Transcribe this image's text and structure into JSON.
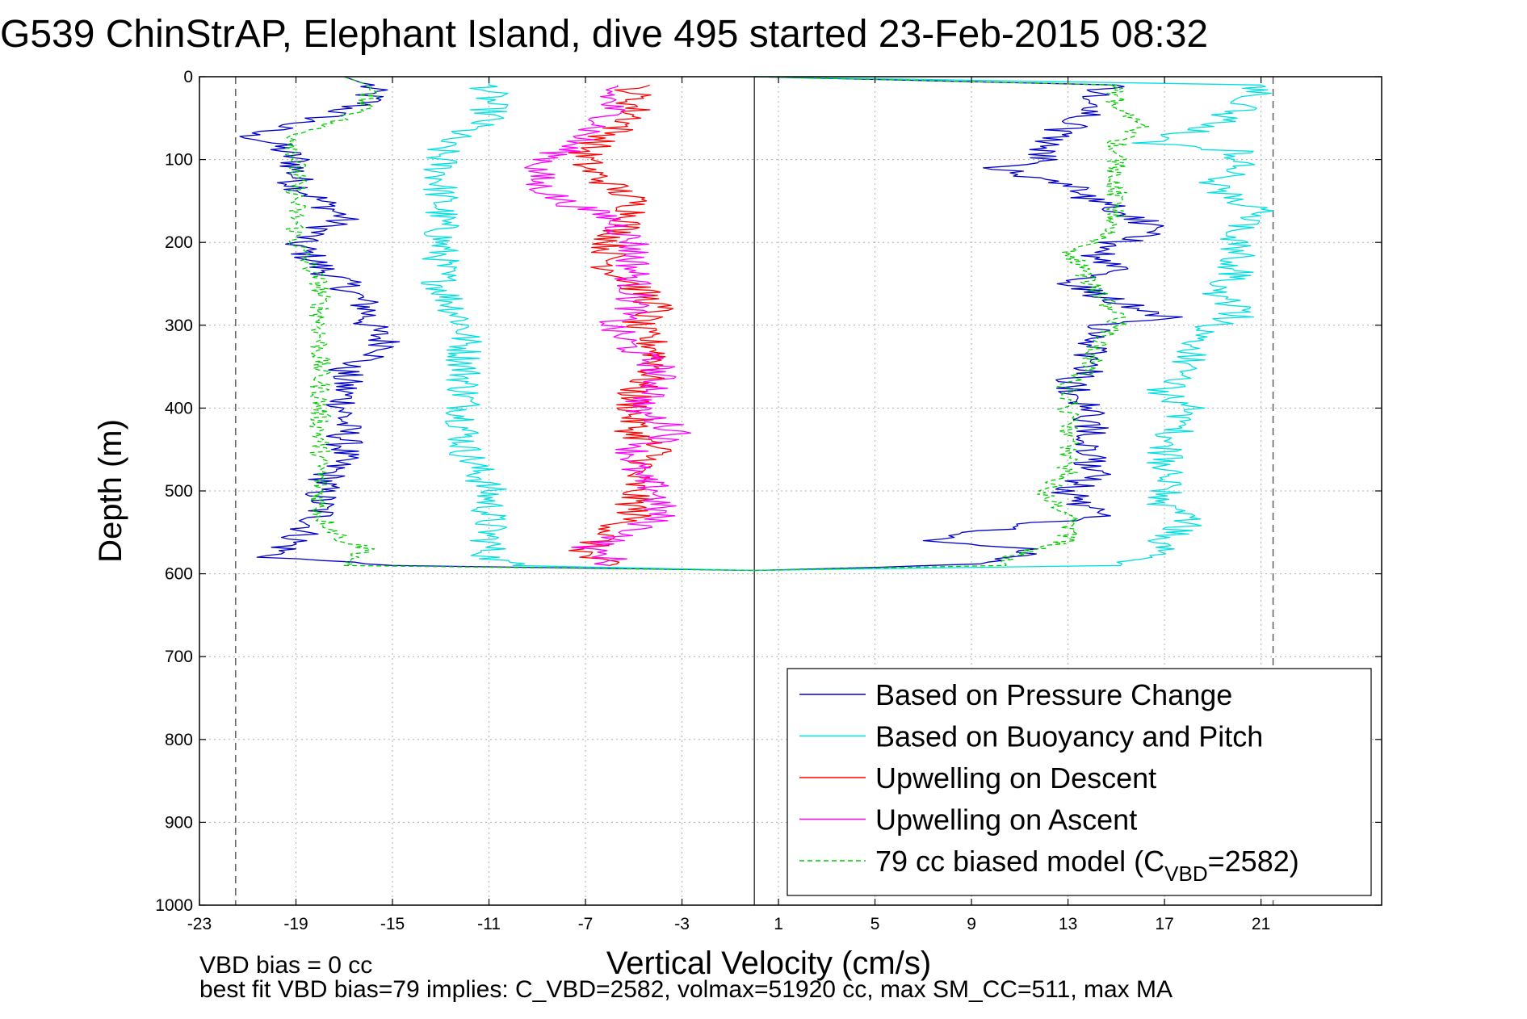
{
  "chart_data": {
    "type": "line",
    "title": "G539 ChinStrAP, Elephant Island, dive 495 started 23-Feb-2015 08:32",
    "xlabel": "Vertical Velocity (cm/s)",
    "ylabel": "Depth (m)",
    "xlim": [
      -23,
      26
    ],
    "ylim": [
      0,
      1000
    ],
    "y_reversed": true,
    "grid": true,
    "x_ticks": [
      "-23",
      "-19",
      "-15",
      "-11",
      "-7",
      "-3",
      "1",
      "5",
      "9",
      "13",
      "17",
      "21"
    ],
    "y_ticks": [
      "0",
      "100",
      "200",
      "300",
      "400",
      "500",
      "600",
      "700",
      "800",
      "900",
      "1000"
    ],
    "vertical_lines": [
      {
        "x": -21.5,
        "style": "dashed"
      },
      {
        "x": 0.0,
        "style": "solid"
      },
      {
        "x": 21.5,
        "style": "dashed"
      }
    ],
    "legend_position": "bottom-right",
    "series": [
      {
        "name": "Based on Pressure Change",
        "color": "#0000cc",
        "descent": {
          "depth": [
            0,
            10,
            30,
            50,
            70,
            80,
            100,
            130,
            150,
            170,
            200,
            230,
            250,
            280,
            300,
            330,
            350,
            380,
            400,
            450,
            500,
            530,
            560,
            580,
            590,
            596
          ],
          "x": [
            -17,
            -16,
            -16,
            -18,
            -21,
            -20,
            -19,
            -19,
            -18,
            -17,
            -19,
            -18,
            -17,
            -16,
            -16,
            -15,
            -17,
            -17,
            -17,
            -17,
            -18,
            -18,
            -19,
            -20,
            -15,
            0
          ]
        },
        "ascent": {
          "depth": [
            596,
            590,
            580,
            570,
            560,
            530,
            500,
            480,
            450,
            400,
            370,
            350,
            330,
            300,
            290,
            270,
            250,
            230,
            210,
            200,
            190,
            170,
            150,
            130,
            110,
            100,
            80,
            60,
            40,
            20,
            10,
            0
          ],
          "x": [
            0,
            8,
            11,
            11,
            7,
            14,
            13,
            14,
            14,
            14,
            13,
            14,
            14,
            14,
            17,
            15,
            13,
            15,
            14,
            15,
            17,
            16,
            14,
            13,
            10,
            12,
            12,
            13,
            14,
            14,
            15,
            0
          ]
        }
      },
      {
        "name": "Based on Buoyancy and Pitch",
        "color": "#00e0e0",
        "descent": {
          "depth": [
            0,
            10,
            50,
            80,
            100,
            120,
            150,
            200,
            250,
            300,
            350,
            400,
            450,
            500,
            550,
            580,
            590,
            596
          ],
          "x": [
            -11,
            -11,
            -11,
            -13,
            -13,
            -13,
            -13,
            -13,
            -13,
            -12,
            -12,
            -12,
            -12,
            -11,
            -11,
            -11,
            -10,
            0
          ]
        },
        "ascent": {
          "depth": [
            596,
            590,
            580,
            560,
            540,
            520,
            500,
            470,
            450,
            400,
            380,
            350,
            320,
            300,
            290,
            280,
            260,
            240,
            220,
            200,
            180,
            160,
            150,
            130,
            110,
            90,
            80,
            60,
            40,
            20,
            10,
            0
          ],
          "x": [
            0,
            15,
            17,
            17,
            18,
            17,
            17,
            17,
            17,
            18,
            17,
            18,
            18,
            19,
            20,
            20,
            19,
            20,
            20,
            20,
            20,
            21,
            20,
            19,
            20,
            20,
            16,
            19,
            20,
            21,
            21,
            0
          ]
        }
      },
      {
        "name": "Upwelling on Descent",
        "color": "#ff0000",
        "depth": [
          10,
          30,
          50,
          70,
          90,
          110,
          130,
          150,
          170,
          200,
          230,
          250,
          280,
          300,
          330,
          350,
          380,
          400,
          430,
          450,
          480,
          500,
          530,
          550,
          570,
          580,
          590
        ],
        "x": [
          -5,
          -5,
          -5,
          -6,
          -7,
          -7,
          -6,
          -5,
          -5,
          -6,
          -6,
          -5,
          -4,
          -5,
          -4,
          -4,
          -5,
          -5,
          -5,
          -4,
          -5,
          -5,
          -5,
          -6,
          -7,
          -7,
          -6
        ]
      },
      {
        "name": "Upwelling on Ascent",
        "color": "#ff00ff",
        "depth": [
          10,
          30,
          50,
          70,
          90,
          110,
          130,
          150,
          170,
          200,
          230,
          250,
          280,
          300,
          330,
          350,
          380,
          400,
          430,
          450,
          480,
          500,
          530,
          550,
          570,
          580,
          590
        ],
        "x": [
          -6,
          -6,
          -6,
          -7,
          -8,
          -9,
          -9,
          -8,
          -6,
          -5,
          -5,
          -5,
          -5,
          -6,
          -5,
          -4,
          -4,
          -5,
          -3,
          -5,
          -5,
          -4,
          -4,
          -5,
          -7,
          -6,
          -6
        ]
      },
      {
        "name": "79 cc biased model (C",
        "sub": "VBD",
        "suffix": "=2582)",
        "color": "#00cc00",
        "dashed": true,
        "descent": {
          "depth": [
            0,
            10,
            40,
            50,
            70,
            100,
            130,
            150,
            200,
            250,
            300,
            350,
            400,
            450,
            500,
            530,
            560,
            570,
            590,
            596
          ],
          "x": [
            -17,
            -16,
            -16,
            -17,
            -19,
            -19,
            -19,
            -19,
            -19,
            -18,
            -18,
            -18,
            -18,
            -18,
            -18,
            -18,
            -17,
            -16,
            -17,
            0
          ]
        },
        "ascent": {
          "depth": [
            596,
            590,
            575,
            560,
            530,
            500,
            480,
            450,
            400,
            370,
            350,
            330,
            300,
            290,
            250,
            210,
            200,
            180,
            160,
            150,
            120,
            100,
            80,
            60,
            40,
            20,
            10,
            0
          ],
          "x": [
            0,
            10,
            11,
            13,
            13,
            12,
            13,
            13,
            13,
            13,
            14,
            14,
            15,
            15,
            14,
            13,
            14,
            15,
            15,
            15,
            15,
            15,
            15,
            16,
            15,
            15,
            15,
            0
          ]
        }
      }
    ],
    "footer_lines": [
      "VBD bias = 0 cc",
      "best fit VBD bias=79 implies: C_VBD=2582, volmax=51920 cc, max SM_CC=511, max MA"
    ]
  }
}
